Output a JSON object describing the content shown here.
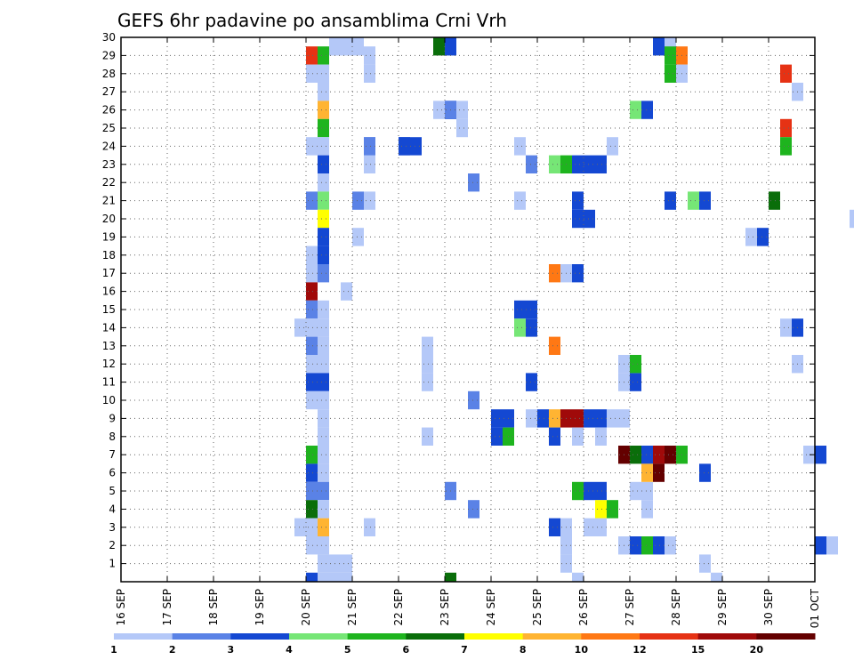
{
  "chart_data": {
    "type": "heatmap",
    "title": "GEFS 6hr padavine po ansamblima Crni Vrh",
    "x_ticks": [
      "16 SEP",
      "17 SEP",
      "18 SEP",
      "19 SEP",
      "20 SEP",
      "21 SEP",
      "22 SEP",
      "23 SEP",
      "24 SEP",
      "25 SEP",
      "26 SEP",
      "27 SEP",
      "28 SEP",
      "29 SEP",
      "30 SEP",
      "01 OCT"
    ],
    "y_ticks": [
      1,
      2,
      3,
      4,
      5,
      6,
      7,
      8,
      9,
      10,
      11,
      12,
      13,
      14,
      15,
      16,
      17,
      18,
      19,
      20,
      21,
      22,
      23,
      24,
      25,
      26,
      27,
      28,
      29,
      30
    ],
    "x_range": [
      0,
      60
    ],
    "y_range": [
      0,
      30
    ],
    "grid": true,
    "colorbar": {
      "labels": [
        "1",
        "2",
        "3",
        "4",
        "5",
        "6",
        "7",
        "8",
        "10",
        "12",
        "15",
        "20"
      ],
      "colors": [
        "#b4c8f8",
        "#5a82e6",
        "#1448d2",
        "#76e676",
        "#1eb41e",
        "#0a6e0a",
        "#ffff00",
        "#ffb432",
        "#ff7814",
        "#e63214",
        "#a00a0a",
        "#640000"
      ]
    },
    "cells": [
      [
        19,
        29,
        0
      ],
      [
        20,
        29,
        0
      ],
      [
        16,
        28,
        9
      ],
      [
        17,
        28,
        4
      ],
      [
        16,
        27,
        0
      ],
      [
        17,
        27,
        0
      ],
      [
        17,
        26,
        0
      ],
      [
        17,
        25,
        7
      ],
      [
        17,
        24,
        4
      ],
      [
        16,
        23,
        0
      ],
      [
        17,
        23,
        0
      ],
      [
        17,
        22,
        2
      ],
      [
        17,
        21,
        0
      ],
      [
        16,
        20,
        1
      ],
      [
        17,
        20,
        3
      ],
      [
        17,
        19,
        6
      ],
      [
        17,
        18,
        2
      ],
      [
        16,
        17,
        0
      ],
      [
        17,
        17,
        2
      ],
      [
        16,
        16,
        0
      ],
      [
        17,
        16,
        1
      ],
      [
        16,
        15,
        10
      ],
      [
        16,
        14,
        1
      ],
      [
        17,
        14,
        0
      ],
      [
        15,
        13,
        0
      ],
      [
        16,
        13,
        0
      ],
      [
        17,
        13,
        0
      ],
      [
        16,
        12,
        1
      ],
      [
        17,
        12,
        0
      ],
      [
        16,
        11,
        0
      ],
      [
        17,
        11,
        0
      ],
      [
        16,
        10,
        2
      ],
      [
        17,
        10,
        2
      ],
      [
        16,
        9,
        0
      ],
      [
        17,
        9,
        0
      ],
      [
        17,
        8,
        0
      ],
      [
        17,
        7,
        0
      ],
      [
        16,
        6,
        4
      ],
      [
        17,
        6,
        0
      ],
      [
        16,
        5,
        2
      ],
      [
        17,
        5,
        0
      ],
      [
        16,
        4,
        1
      ],
      [
        17,
        4,
        1
      ],
      [
        16,
        3,
        5
      ],
      [
        17,
        3,
        0
      ],
      [
        15,
        2,
        0
      ],
      [
        16,
        2,
        0
      ],
      [
        17,
        2,
        7
      ],
      [
        16,
        1,
        0
      ],
      [
        17,
        1,
        0
      ],
      [
        17,
        0,
        0
      ],
      [
        18,
        0,
        0
      ],
      [
        19,
        0,
        0
      ],
      [
        16,
        -1,
        2
      ],
      [
        17,
        -1,
        0
      ],
      [
        18,
        -1,
        0
      ],
      [
        19,
        -1,
        0
      ],
      [
        18,
        29,
        0
      ],
      [
        21,
        28,
        0
      ],
      [
        21,
        27,
        0
      ],
      [
        21,
        23,
        1
      ],
      [
        21,
        22,
        0
      ],
      [
        20,
        20,
        1
      ],
      [
        21,
        20,
        0
      ],
      [
        20,
        18,
        0
      ],
      [
        21,
        2,
        0
      ],
      [
        19,
        15,
        0
      ],
      [
        27,
        29,
        5
      ],
      [
        28,
        29,
        2
      ],
      [
        27,
        25,
        0
      ],
      [
        28,
        25,
        2
      ],
      [
        28,
        25,
        2
      ],
      [
        29,
        25,
        0
      ],
      [
        25,
        23,
        2
      ],
      [
        21,
        23,
        1
      ],
      [
        30,
        21,
        1
      ],
      [
        30,
        9,
        1
      ],
      [
        35,
        8,
        0
      ],
      [
        35,
        10,
        2
      ],
      [
        34,
        20,
        0
      ],
      [
        26,
        12,
        0
      ],
      [
        26,
        11,
        0
      ],
      [
        26,
        10,
        0
      ],
      [
        26,
        7,
        0
      ],
      [
        28,
        4,
        1
      ],
      [
        28,
        -1,
        5
      ],
      [
        29,
        24,
        0
      ],
      [
        28,
        25,
        1
      ],
      [
        24,
        23,
        2
      ],
      [
        24,
        23,
        2
      ],
      [
        35,
        22,
        1
      ],
      [
        37,
        22,
        3
      ],
      [
        38,
        22,
        4
      ],
      [
        39,
        22,
        2
      ],
      [
        40,
        22,
        2
      ],
      [
        41,
        22,
        2
      ],
      [
        34,
        23,
        0
      ],
      [
        30,
        3,
        1
      ],
      [
        32,
        8,
        2
      ],
      [
        33,
        8,
        2
      ],
      [
        33,
        7,
        4
      ],
      [
        34,
        14,
        2
      ],
      [
        35,
        14,
        2
      ],
      [
        34,
        13,
        3
      ],
      [
        35,
        13,
        2
      ],
      [
        37,
        12,
        8
      ],
      [
        37,
        16,
        8
      ],
      [
        38,
        16,
        0
      ],
      [
        39,
        16,
        2
      ],
      [
        39,
        19,
        2
      ],
      [
        40,
        19,
        2
      ],
      [
        39,
        20,
        2
      ],
      [
        36,
        8,
        2
      ],
      [
        37,
        8,
        7
      ],
      [
        38,
        8,
        10
      ],
      [
        39,
        8,
        10
      ],
      [
        40,
        8,
        2
      ],
      [
        41,
        8,
        2
      ],
      [
        32,
        7,
        2
      ],
      [
        37,
        7,
        2
      ],
      [
        39,
        7,
        0
      ],
      [
        41,
        7,
        0
      ],
      [
        39,
        4,
        4
      ],
      [
        40,
        4,
        2
      ],
      [
        41,
        4,
        2
      ],
      [
        41,
        3,
        6
      ],
      [
        42,
        3,
        4
      ],
      [
        37,
        2,
        2
      ],
      [
        38,
        2,
        0
      ],
      [
        40,
        2,
        0
      ],
      [
        41,
        2,
        0
      ],
      [
        38,
        1,
        0
      ],
      [
        38,
        0,
        0
      ],
      [
        39,
        -1,
        0
      ],
      [
        42,
        23,
        0
      ],
      [
        42,
        8,
        0
      ],
      [
        43,
        8,
        0
      ],
      [
        43,
        6,
        11
      ],
      [
        44,
        6,
        5
      ],
      [
        45,
        6,
        2
      ],
      [
        43,
        10,
        0
      ],
      [
        44,
        10,
        2
      ],
      [
        43,
        11,
        0
      ],
      [
        44,
        11,
        4
      ],
      [
        44,
        25,
        3
      ],
      [
        45,
        25,
        2
      ],
      [
        44,
        1,
        2
      ],
      [
        45,
        1,
        4
      ],
      [
        43,
        1,
        0
      ],
      [
        44,
        4,
        0
      ],
      [
        45,
        4,
        0
      ],
      [
        46,
        29,
        2
      ],
      [
        47,
        29,
        0
      ],
      [
        47,
        28,
        4
      ],
      [
        48,
        28,
        8
      ],
      [
        47,
        27,
        4
      ],
      [
        48,
        27,
        0
      ],
      [
        46,
        6,
        10
      ],
      [
        47,
        6,
        11
      ],
      [
        48,
        6,
        4
      ],
      [
        45,
        5,
        7
      ],
      [
        46,
        5,
        11
      ],
      [
        47,
        20,
        2
      ],
      [
        49,
        20,
        3
      ],
      [
        50,
        20,
        2
      ],
      [
        50,
        5,
        2
      ],
      [
        47,
        1,
        0
      ],
      [
        46,
        1,
        2
      ],
      [
        50,
        0,
        0
      ],
      [
        45,
        3,
        0
      ],
      [
        56,
        20,
        5
      ],
      [
        54,
        18,
        0
      ],
      [
        55,
        18,
        2
      ],
      [
        57,
        13,
        0
      ],
      [
        58,
        13,
        2
      ],
      [
        57,
        27,
        9
      ],
      [
        57,
        24,
        9
      ],
      [
        57,
        23,
        4
      ],
      [
        58,
        26,
        0
      ],
      [
        59,
        6,
        0
      ],
      [
        58,
        11,
        0
      ],
      [
        60,
        6,
        2
      ],
      [
        64,
        6,
        2
      ],
      [
        63,
        19,
        0
      ],
      [
        66,
        18,
        0
      ],
      [
        66,
        11,
        2
      ],
      [
        66,
        22,
        0
      ],
      [
        60,
        1,
        2
      ],
      [
        61,
        1,
        0
      ],
      [
        51,
        -1,
        0
      ]
    ]
  }
}
